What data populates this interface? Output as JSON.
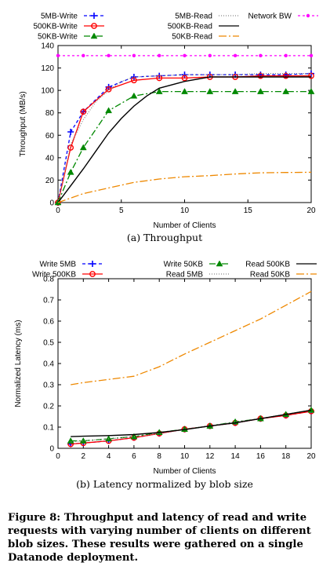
{
  "chart_data": [
    {
      "type": "line",
      "caption": "(a) Throughput",
      "xlabel": "Number of Clients",
      "ylabel": "Throughput (MB/s)",
      "xlim": [
        0,
        20
      ],
      "ylim": [
        0,
        140
      ],
      "xticks": [
        "0",
        "5",
        "10",
        "15",
        "20"
      ],
      "yticks": [
        "0",
        "20",
        "40",
        "60",
        "80",
        "100",
        "120",
        "140"
      ],
      "grid": false,
      "legend_position": "top",
      "series": [
        {
          "name": "5MB-Write",
          "color": "#0000ff",
          "dash": "4,3",
          "marker": "plus",
          "x": [
            0,
            1,
            2,
            4,
            6,
            8,
            10,
            12,
            14,
            16,
            18,
            20
          ],
          "y": [
            0,
            63,
            81,
            103,
            112,
            113,
            114,
            114,
            114,
            114,
            114,
            115
          ]
        },
        {
          "name": "500KB-Write",
          "color": "#ff0000",
          "dash": "",
          "marker": "circle",
          "x": [
            0,
            1,
            2,
            4,
            6,
            8,
            10,
            12,
            14,
            16,
            18,
            20
          ],
          "y": [
            0,
            49,
            81,
            101,
            109,
            111,
            111,
            112,
            112,
            113,
            113,
            113
          ]
        },
        {
          "name": "50KB-Write",
          "color": "#008800",
          "dash": "8,3,2,3",
          "marker": "triangle",
          "x": [
            0,
            1,
            2,
            4,
            6,
            8,
            10,
            12,
            14,
            16,
            18,
            20
          ],
          "y": [
            0,
            27,
            49,
            82,
            95,
            99,
            99,
            99,
            99,
            99,
            99,
            99
          ]
        },
        {
          "name": "5MB-Read",
          "color": "#888888",
          "dash": "1,2",
          "marker": "none",
          "x": [
            0,
            1,
            2,
            3,
            4,
            5,
            6,
            8,
            10,
            12,
            14,
            16,
            18,
            20
          ],
          "y": [
            0,
            52,
            74,
            90,
            100,
            108,
            112,
            113,
            114,
            114,
            114,
            115,
            115,
            115
          ]
        },
        {
          "name": "500KB-Read",
          "color": "#000000",
          "dash": "",
          "marker": "none",
          "x": [
            0,
            1,
            2,
            3,
            4,
            5,
            6,
            7,
            8,
            10,
            12,
            14,
            16,
            18,
            20
          ],
          "y": [
            0,
            15,
            30,
            46,
            62,
            75,
            86,
            95,
            102,
            108,
            112,
            112,
            112,
            112,
            112
          ]
        },
        {
          "name": "50KB-Read",
          "color": "#ee8800",
          "dash": "10,3,2,3",
          "marker": "none",
          "x": [
            0,
            2,
            4,
            6,
            8,
            10,
            12,
            14,
            16,
            18,
            20
          ],
          "y": [
            0,
            8,
            13,
            18,
            21,
            23,
            24,
            25.5,
            26.5,
            26.8,
            27
          ]
        },
        {
          "name": "Network BW",
          "color": "#ff00ff",
          "dash": "3,3",
          "marker": "dot",
          "x": [
            0,
            2,
            4,
            6,
            8,
            10,
            12,
            14,
            16,
            18,
            20
          ],
          "y": [
            131,
            131,
            131,
            131,
            131,
            131,
            131,
            131,
            131,
            131,
            131
          ]
        }
      ]
    },
    {
      "type": "line",
      "caption": "(b) Latency normalized by blob size",
      "xlabel": "Number of Clients",
      "ylabel": "Normalized Latency (ms)",
      "xlim": [
        0,
        20
      ],
      "ylim": [
        0,
        0.8
      ],
      "xticks": [
        "0",
        "2",
        "4",
        "6",
        "8",
        "10",
        "12",
        "14",
        "16",
        "18",
        "20"
      ],
      "yticks": [
        "0",
        "0.1",
        "0.2",
        "0.3",
        "0.4",
        "0.5",
        "0.6",
        "0.7",
        "0.8"
      ],
      "grid": false,
      "legend_position": "top",
      "series": [
        {
          "name": "Write 5MB",
          "color": "#0000ff",
          "dash": "4,3",
          "marker": "plus",
          "x": [
            1,
            2,
            4,
            6,
            8,
            10,
            12,
            14,
            16,
            18,
            20
          ],
          "y": [
            0.02,
            0.025,
            0.035,
            0.05,
            0.07,
            0.09,
            0.105,
            0.12,
            0.14,
            0.155,
            0.175
          ]
        },
        {
          "name": "Write 500KB",
          "color": "#ff0000",
          "dash": "",
          "marker": "circle",
          "x": [
            1,
            2,
            4,
            6,
            8,
            10,
            12,
            14,
            16,
            18,
            20
          ],
          "y": [
            0.02,
            0.025,
            0.035,
            0.05,
            0.07,
            0.09,
            0.105,
            0.12,
            0.14,
            0.155,
            0.175
          ]
        },
        {
          "name": "Write 50KB",
          "color": "#008800",
          "dash": "8,3,2,3",
          "marker": "triangle",
          "x": [
            1,
            2,
            4,
            6,
            8,
            10,
            12,
            14,
            16,
            18,
            20
          ],
          "y": [
            0.035,
            0.035,
            0.045,
            0.055,
            0.075,
            0.09,
            0.105,
            0.125,
            0.14,
            0.16,
            0.18
          ]
        },
        {
          "name": "Read 5MB",
          "color": "#888888",
          "dash": "1,2",
          "marker": "none",
          "x": [
            1,
            2,
            4,
            6,
            8,
            10,
            12,
            14,
            16,
            18,
            20
          ],
          "y": [
            0.03,
            0.035,
            0.045,
            0.055,
            0.07,
            0.09,
            0.105,
            0.125,
            0.14,
            0.16,
            0.18
          ]
        },
        {
          "name": "Read 500KB",
          "color": "#000000",
          "dash": "",
          "marker": "none",
          "x": [
            1,
            2,
            4,
            6,
            8,
            10,
            12,
            14,
            16,
            18,
            20
          ],
          "y": [
            0.055,
            0.057,
            0.06,
            0.065,
            0.075,
            0.088,
            0.105,
            0.12,
            0.14,
            0.16,
            0.18
          ]
        },
        {
          "name": "Read 50KB",
          "color": "#ee8800",
          "dash": "10,3,2,3",
          "marker": "none",
          "x": [
            1,
            2,
            4,
            6,
            8,
            10,
            12,
            14,
            16,
            18,
            20
          ],
          "y": [
            0.3,
            0.31,
            0.325,
            0.34,
            0.385,
            0.445,
            0.5,
            0.555,
            0.61,
            0.675,
            0.74
          ]
        }
      ]
    }
  ],
  "caption_lines": [
    "Figure 8: Throughput and latency of read and write",
    "requests with varying number of clients on different",
    "blob sizes.  These results were gathered on a single",
    "Datanode deployment."
  ]
}
